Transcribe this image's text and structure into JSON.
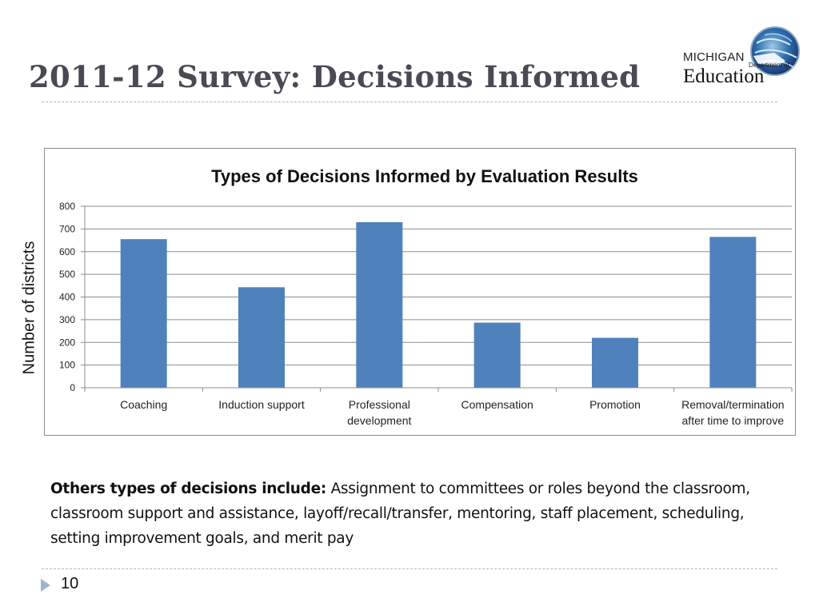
{
  "slide": {
    "title": "2011-12 Survey: Decisions Informed",
    "page_number": "10"
  },
  "logo": {
    "michigan": "MICHIGAN",
    "department_of": "Department of",
    "education": "Education"
  },
  "note": {
    "lead": "Others types of decisions include:",
    "text": "Assignment to committees or roles beyond the classroom, classroom support and assistance, layoff/recall/transfer, mentoring, staff placement, scheduling, setting improvement goals, and merit pay"
  },
  "colors": {
    "bar": "#4f81bd",
    "title": "#4a4a55",
    "rule": "#a9b7c6",
    "arrow": "#9fb3cf"
  },
  "chart_data": {
    "type": "bar",
    "title": "Types of Decisions Informed by Evaluation Results",
    "ylabel": "Number of districts",
    "xlabel": "",
    "categories": [
      [
        "Coaching"
      ],
      [
        "Induction support"
      ],
      [
        "Professional",
        "development"
      ],
      [
        "Compensation"
      ],
      [
        "Promotion"
      ],
      [
        "Removal/termination",
        "after time to improve"
      ]
    ],
    "values": [
      655,
      443,
      730,
      287,
      220,
      665
    ],
    "ylim": [
      0,
      800
    ],
    "yticks": [
      0,
      100,
      200,
      300,
      400,
      500,
      600,
      700,
      800
    ],
    "grid": true,
    "legend": "none"
  }
}
